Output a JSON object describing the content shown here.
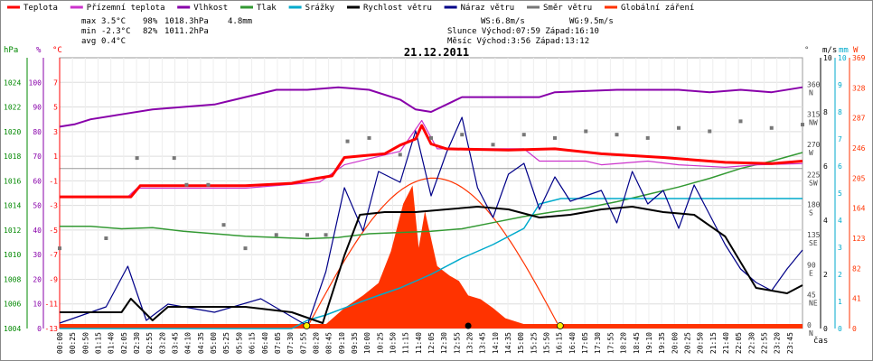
{
  "title": "21.12.2011",
  "legend": [
    {
      "key": "teplota",
      "label": "Teplota",
      "color": "#ff0000"
    },
    {
      "key": "prizemni",
      "label": "Přízemní teplota",
      "color": "#cc33cc"
    },
    {
      "key": "vlhkost",
      "label": "Vlhkost",
      "color": "#8800aa"
    },
    {
      "key": "tlak",
      "label": "Tlak",
      "color": "#339933"
    },
    {
      "key": "srazky",
      "label": "Srážky",
      "color": "#00aacc"
    },
    {
      "key": "rychlost",
      "label": "Rychlost větru",
      "color": "#000000"
    },
    {
      "key": "naraz",
      "label": "Náraz větru",
      "color": "#000088"
    },
    {
      "key": "smer",
      "label": "Směr větru",
      "color": "#777777"
    },
    {
      "key": "zareni",
      "label": "Globální záření",
      "color": "#ff3300"
    }
  ],
  "stats": {
    "max_label": "max",
    "max_temp": "3.5°C",
    "max_hum": "98%",
    "max_press": "1018.3hPa",
    "max_rain": "4.8mm",
    "min_label": "min",
    "min_temp": "-2.3°C",
    "min_hum": "82%",
    "min_press": "1011.2hPa",
    "avg_label": "avg",
    "avg_temp": "0.4°C",
    "ws": "WS:6.8m/s",
    "wg": "WG:9.5m/s",
    "sun": "Slunce Východ:07:59  Západ:16:10",
    "moon": "Měsíc  Východ:3:56   Západ:13:12"
  },
  "axes": {
    "hpa_unit": "hPa",
    "pct_unit": "%",
    "c_unit": "°C",
    "ms_unit": "m/s",
    "mm_unit": "mm",
    "w_unit": "W",
    "deg_unit": "°",
    "time_unit": "čas",
    "hpa_ticks": [
      "1004",
      "1006",
      "1008",
      "1010",
      "1012",
      "1014",
      "1016",
      "1018",
      "1020",
      "1022",
      "1024"
    ],
    "pct_ticks": [
      "0",
      "10",
      "20",
      "30",
      "40",
      "50",
      "60",
      "70",
      "80",
      "90",
      "100"
    ],
    "c_ticks": [
      "-13",
      "-11",
      "-9",
      "-7",
      "-5",
      "-3",
      "-1",
      "1",
      "3",
      "5",
      "7"
    ],
    "deg_ticks": [
      "0",
      "45",
      "90",
      "135",
      "180",
      "225",
      "270",
      "315",
      "360"
    ],
    "dir_ticks": [
      "N",
      "NE",
      "E",
      "SE",
      "S",
      "SW",
      "W",
      "NW",
      "N"
    ],
    "ms_ticks": [
      "0",
      "2",
      "4",
      "6",
      "8",
      "10"
    ],
    "mm_ticks": [
      "0",
      "1",
      "2",
      "3",
      "4",
      "5",
      "6",
      "7",
      "8",
      "9",
      "10"
    ],
    "w_ticks": [
      "0",
      "41",
      "82",
      "123",
      "164",
      "205",
      "246",
      "287",
      "328",
      "369"
    ],
    "x_ticks": [
      "00:00",
      "00:25",
      "00:50",
      "01:15",
      "01:40",
      "02:05",
      "02:30",
      "02:55",
      "03:20",
      "03:45",
      "04:10",
      "04:35",
      "05:00",
      "05:25",
      "05:50",
      "06:15",
      "06:40",
      "07:05",
      "07:30",
      "07:55",
      "08:20",
      "08:45",
      "09:10",
      "09:35",
      "10:00",
      "10:25",
      "10:50",
      "11:15",
      "11:40",
      "12:05",
      "12:30",
      "12:55",
      "13:20",
      "13:45",
      "14:10",
      "14:35",
      "15:00",
      "15:25",
      "15:50",
      "16:15",
      "16:40",
      "17:05",
      "17:30",
      "17:55",
      "18:20",
      "18:45",
      "19:10",
      "19:35",
      "20:00",
      "20:25",
      "20:50",
      "21:15",
      "21:40",
      "22:05",
      "22:30",
      "22:55",
      "23:20",
      "23:45"
    ]
  },
  "chart_data": {
    "type": "line",
    "title": "21.12.2011",
    "x_unit": "hours",
    "series": [
      {
        "name": "Teplota",
        "unit": "°C",
        "points": [
          [
            0,
            -2.3
          ],
          [
            2.3,
            -2.3
          ],
          [
            2.6,
            -1.4
          ],
          [
            6,
            -1.4
          ],
          [
            7.5,
            -1.2
          ],
          [
            8.3,
            -0.8
          ],
          [
            8.8,
            -0.6
          ],
          [
            9.2,
            0.9
          ],
          [
            10.5,
            1.2
          ],
          [
            11,
            1.9
          ],
          [
            11.5,
            2.4
          ],
          [
            11.7,
            3.5
          ],
          [
            12,
            2
          ],
          [
            12.5,
            1.6
          ],
          [
            14.5,
            1.5
          ],
          [
            16,
            1.6
          ],
          [
            17.5,
            1.2
          ],
          [
            19.5,
            0.9
          ],
          [
            21.5,
            0.5
          ],
          [
            23,
            0.4
          ],
          [
            24,
            0.6
          ]
        ]
      },
      {
        "name": "Přízemní teplota",
        "unit": "°C",
        "points": [
          [
            0,
            -2.3
          ],
          [
            2.2,
            -2.3
          ],
          [
            2.5,
            -1.6
          ],
          [
            6,
            -1.6
          ],
          [
            8.4,
            -1.1
          ],
          [
            9.2,
            0.3
          ],
          [
            11,
            1.4
          ],
          [
            11.7,
            3.9
          ],
          [
            12.2,
            1.6
          ],
          [
            15,
            1.6
          ],
          [
            15.5,
            0.6
          ],
          [
            17,
            0.6
          ],
          [
            17.5,
            0.3
          ],
          [
            19,
            0.6
          ],
          [
            20,
            0.3
          ],
          [
            21.5,
            0.1
          ],
          [
            22.5,
            0.3
          ],
          [
            24,
            0.4
          ]
        ]
      },
      {
        "name": "Vlhkost",
        "unit": "%",
        "points": [
          [
            0,
            82
          ],
          [
            0.5,
            83
          ],
          [
            1,
            85
          ],
          [
            2,
            87
          ],
          [
            3,
            89
          ],
          [
            4,
            90
          ],
          [
            5,
            91
          ],
          [
            6,
            94
          ],
          [
            7,
            97
          ],
          [
            8,
            97
          ],
          [
            9,
            98
          ],
          [
            10,
            97
          ],
          [
            11,
            93
          ],
          [
            11.5,
            89
          ],
          [
            12,
            88
          ],
          [
            12.5,
            91
          ],
          [
            13,
            94
          ],
          [
            14.5,
            94
          ],
          [
            15.5,
            94
          ],
          [
            16,
            96
          ],
          [
            18,
            97
          ],
          [
            20,
            97
          ],
          [
            21,
            96
          ],
          [
            22,
            97
          ],
          [
            23,
            96
          ],
          [
            24,
            98
          ]
        ]
      },
      {
        "name": "Tlak",
        "unit": "hPa",
        "points": [
          [
            0,
            1012.3
          ],
          [
            1,
            1012.3
          ],
          [
            2,
            1012.1
          ],
          [
            3,
            1012.2
          ],
          [
            4,
            1011.9
          ],
          [
            5,
            1011.7
          ],
          [
            6,
            1011.5
          ],
          [
            7,
            1011.4
          ],
          [
            8,
            1011.3
          ],
          [
            9,
            1011.4
          ],
          [
            10,
            1011.7
          ],
          [
            11,
            1011.8
          ],
          [
            12,
            1011.9
          ],
          [
            13,
            1012.1
          ],
          [
            14,
            1012.6
          ],
          [
            15,
            1013.1
          ],
          [
            16,
            1013.5
          ],
          [
            17,
            1013.8
          ],
          [
            18,
            1014.3
          ],
          [
            19,
            1014.9
          ],
          [
            20,
            1015.5
          ],
          [
            21,
            1016.2
          ],
          [
            22,
            1017
          ],
          [
            23,
            1017.6
          ],
          [
            24,
            1018.3
          ]
        ]
      },
      {
        "name": "Srážky",
        "unit": "mm",
        "points": [
          [
            0,
            0
          ],
          [
            7.5,
            0
          ],
          [
            8,
            0.3
          ],
          [
            8.6,
            0.5
          ],
          [
            10,
            1.1
          ],
          [
            11,
            1.5
          ],
          [
            12,
            2
          ],
          [
            13,
            2.6
          ],
          [
            14,
            3.1
          ],
          [
            15,
            3.7
          ],
          [
            15.5,
            4.6
          ],
          [
            16.2,
            4.8
          ],
          [
            24,
            4.8
          ]
        ]
      },
      {
        "name": "Rychlost větru",
        "unit": "m/s",
        "points": [
          [
            0,
            0.6
          ],
          [
            2,
            0.6
          ],
          [
            2.3,
            1.1
          ],
          [
            3,
            0.3
          ],
          [
            3.5,
            0.8
          ],
          [
            6,
            0.8
          ],
          [
            7.5,
            0.6
          ],
          [
            8.5,
            0.2
          ],
          [
            9.2,
            2.7
          ],
          [
            9.7,
            4.2
          ],
          [
            10.5,
            4.3
          ],
          [
            11.5,
            4.3
          ],
          [
            12.5,
            4.4
          ],
          [
            13.5,
            4.5
          ],
          [
            14.5,
            4.4
          ],
          [
            15.5,
            4.1
          ],
          [
            16.5,
            4.2
          ],
          [
            17.5,
            4.4
          ],
          [
            18.5,
            4.5
          ],
          [
            19.5,
            4.3
          ],
          [
            20.5,
            4.2
          ],
          [
            21.5,
            3.4
          ],
          [
            22.5,
            1.5
          ],
          [
            23.5,
            1.3
          ],
          [
            24,
            1.6
          ]
        ]
      },
      {
        "name": "Náraz větru",
        "unit": "m/s",
        "points": [
          [
            0,
            0.2
          ],
          [
            1.5,
            0.8
          ],
          [
            2.2,
            2.3
          ],
          [
            2.8,
            0.3
          ],
          [
            3.5,
            0.9
          ],
          [
            5,
            0.6
          ],
          [
            6.5,
            1.1
          ],
          [
            8,
            0.1
          ],
          [
            8.6,
            2.1
          ],
          [
            9.2,
            5.2
          ],
          [
            9.8,
            3.6
          ],
          [
            10.3,
            5.8
          ],
          [
            11,
            5.4
          ],
          [
            11.5,
            7.3
          ],
          [
            12,
            4.9
          ],
          [
            12.5,
            6.5
          ],
          [
            13,
            7.8
          ],
          [
            13.5,
            5.2
          ],
          [
            14,
            4.1
          ],
          [
            14.5,
            5.7
          ],
          [
            15,
            6.1
          ],
          [
            15.5,
            4.4
          ],
          [
            16,
            5.6
          ],
          [
            16.5,
            4.7
          ],
          [
            17,
            4.9
          ],
          [
            17.5,
            5.1
          ],
          [
            18,
            3.9
          ],
          [
            18.5,
            5.8
          ],
          [
            19,
            4.6
          ],
          [
            19.5,
            5.1
          ],
          [
            20,
            3.7
          ],
          [
            20.5,
            5.3
          ],
          [
            21,
            4.2
          ],
          [
            21.5,
            3.1
          ],
          [
            22,
            2.2
          ],
          [
            22.5,
            1.7
          ],
          [
            23,
            1.4
          ],
          [
            23.5,
            2.2
          ],
          [
            24,
            2.9
          ]
        ]
      },
      {
        "name": "Globální záření",
        "unit": "W",
        "points": [
          [
            0,
            0
          ],
          [
            7.9,
            0
          ],
          [
            8.5,
            2
          ],
          [
            9.2,
            28
          ],
          [
            9.8,
            45
          ],
          [
            10.3,
            62
          ],
          [
            10.7,
            105
          ],
          [
            11.1,
            170
          ],
          [
            11.4,
            195
          ],
          [
            11.6,
            110
          ],
          [
            11.8,
            160
          ],
          [
            12.2,
            85
          ],
          [
            12.6,
            72
          ],
          [
            12.9,
            65
          ],
          [
            13.2,
            45
          ],
          [
            13.6,
            40
          ],
          [
            14,
            28
          ],
          [
            14.4,
            14
          ],
          [
            15,
            6
          ],
          [
            15.6,
            1
          ],
          [
            16.2,
            0
          ],
          [
            24,
            0
          ]
        ]
      },
      {
        "name": "Směr větru",
        "unit": "°",
        "points": [
          [
            0,
            120
          ],
          [
            1.5,
            135
          ],
          [
            2.5,
            255
          ],
          [
            3.7,
            255
          ],
          [
            4.1,
            215
          ],
          [
            4.8,
            215
          ],
          [
            5.3,
            155
          ],
          [
            6,
            120
          ],
          [
            7,
            140
          ],
          [
            8,
            140
          ],
          [
            8.6,
            140
          ],
          [
            9.3,
            280
          ],
          [
            10,
            285
          ],
          [
            11,
            260
          ],
          [
            12,
            285
          ],
          [
            13,
            290
          ],
          [
            14,
            275
          ],
          [
            15,
            290
          ],
          [
            16,
            285
          ],
          [
            17,
            295
          ],
          [
            18,
            290
          ],
          [
            19,
            285
          ],
          [
            20,
            300
          ],
          [
            21,
            295
          ],
          [
            22,
            310
          ],
          [
            23,
            300
          ],
          [
            24,
            305
          ]
        ]
      }
    ],
    "theoretical_radiation_max_w": 205
  }
}
